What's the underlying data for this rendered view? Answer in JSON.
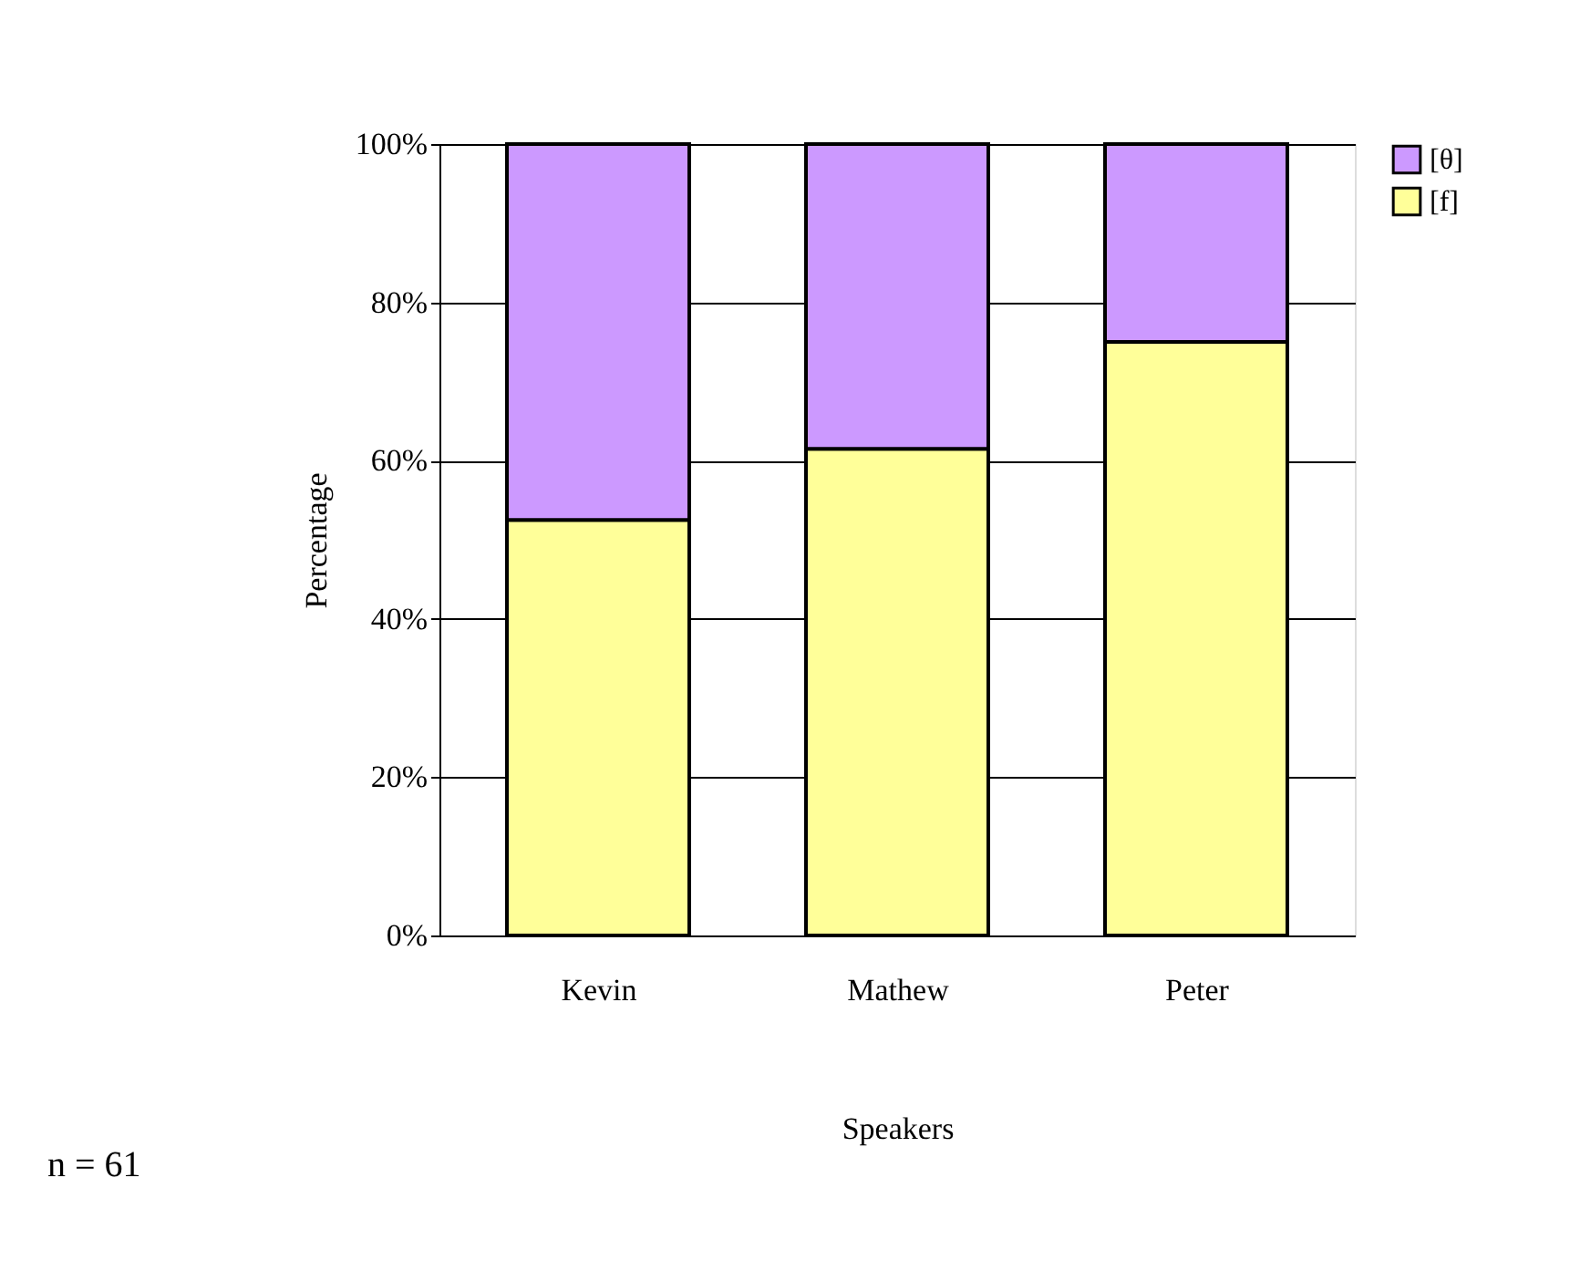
{
  "chart_data": {
    "type": "bar",
    "stacked": true,
    "xlabel": "Speakers",
    "ylabel": "Percentage",
    "categories": [
      "Kevin",
      "Mathew",
      "Peter"
    ],
    "series": [
      {
        "name": "[f]",
        "color": "#ffff99",
        "values": [
          52.5,
          61.5,
          75
        ]
      },
      {
        "name": "[θ]",
        "color": "#cc99ff",
        "values": [
          47.5,
          38.5,
          25
        ]
      }
    ],
    "ylim": [
      0,
      100
    ],
    "yticks": [
      {
        "value": 0,
        "label": "0%"
      },
      {
        "value": 20,
        "label": "20%"
      },
      {
        "value": 40,
        "label": "40%"
      },
      {
        "value": 60,
        "label": "60%"
      },
      {
        "value": 80,
        "label": "80%"
      },
      {
        "value": 100,
        "label": "100%"
      }
    ],
    "grid": "y",
    "legend": "right",
    "annotations": [
      "n = 61"
    ]
  }
}
